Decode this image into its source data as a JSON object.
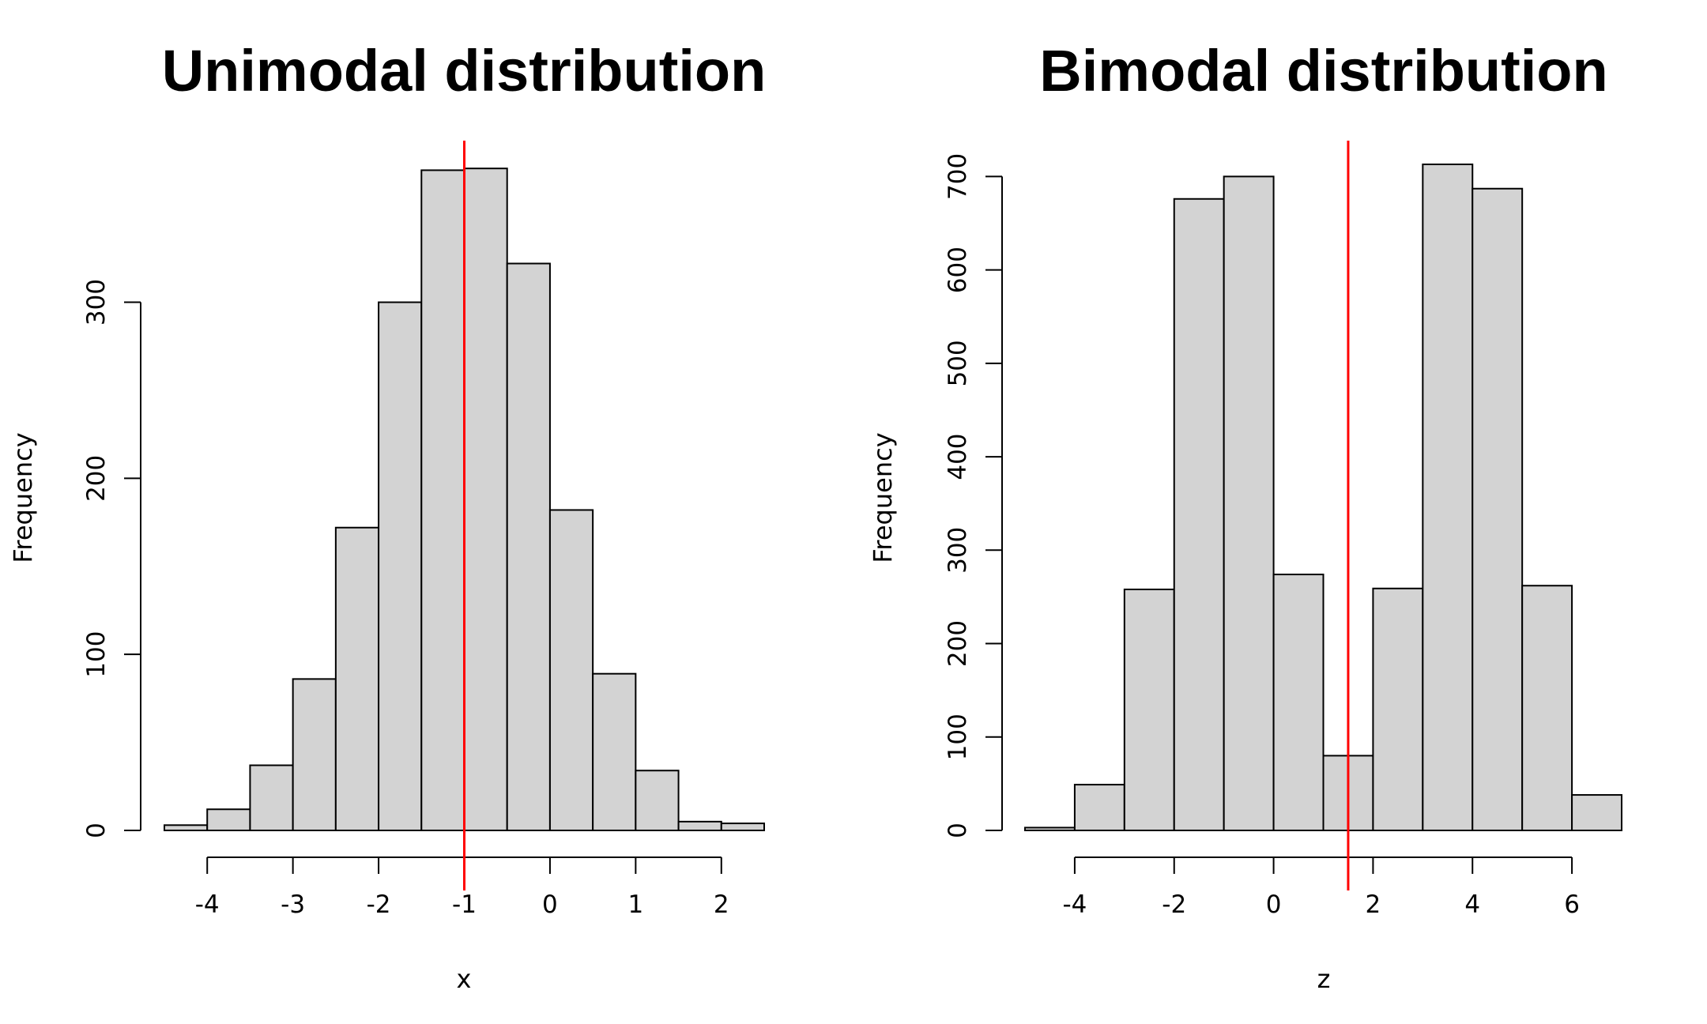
{
  "chart_data": [
    {
      "type": "bar",
      "title": "Unimodal distribution",
      "xlabel": "x",
      "ylabel": "Frequency",
      "bin_edges": [
        -4.5,
        -4.0,
        -3.5,
        -3.0,
        -2.5,
        -2.0,
        -1.5,
        -1.0,
        -0.5,
        0.0,
        0.5,
        1.0,
        1.5,
        2.0,
        2.5
      ],
      "values": [
        3,
        12,
        37,
        86,
        172,
        300,
        375,
        376,
        322,
        182,
        89,
        34,
        5,
        4
      ],
      "xticks": [
        -4,
        -3,
        -2,
        -1,
        0,
        1,
        2
      ],
      "xtick_labels": [
        "-4",
        "-3",
        "-2",
        "-1",
        "0",
        "1",
        "2"
      ],
      "yticks": [
        0,
        100,
        200,
        300
      ],
      "ytick_labels": [
        "0",
        "100",
        "200",
        "300"
      ],
      "xlim": [
        -4.5,
        2.5
      ],
      "ylim": [
        0,
        390
      ],
      "reference_line_x": -1,
      "reference_line_color": "#ff0000",
      "bar_color": "#d3d3d3"
    },
    {
      "type": "bar",
      "title": "Bimodal distribution",
      "xlabel": "z",
      "ylabel": "Frequency",
      "bin_edges": [
        -5,
        -4,
        -3,
        -2,
        -1,
        0,
        1,
        2,
        3,
        4,
        5,
        6,
        7
      ],
      "values": [
        3,
        49,
        258,
        676,
        700,
        274,
        80,
        259,
        713,
        687,
        262,
        38
      ],
      "xticks": [
        -4,
        -2,
        0,
        2,
        4,
        6
      ],
      "xtick_labels": [
        "-4",
        "-2",
        "0",
        "2",
        "4",
        "6"
      ],
      "yticks": [
        0,
        100,
        200,
        300,
        400,
        500,
        600,
        700
      ],
      "ytick_labels": [
        "0",
        "100",
        "200",
        "300",
        "400",
        "500",
        "600",
        "700"
      ],
      "xlim": [
        -5,
        7
      ],
      "ylim": [
        0,
        735
      ],
      "reference_line_x": 1.5,
      "reference_line_color": "#ff0000",
      "bar_color": "#d3d3d3"
    }
  ]
}
